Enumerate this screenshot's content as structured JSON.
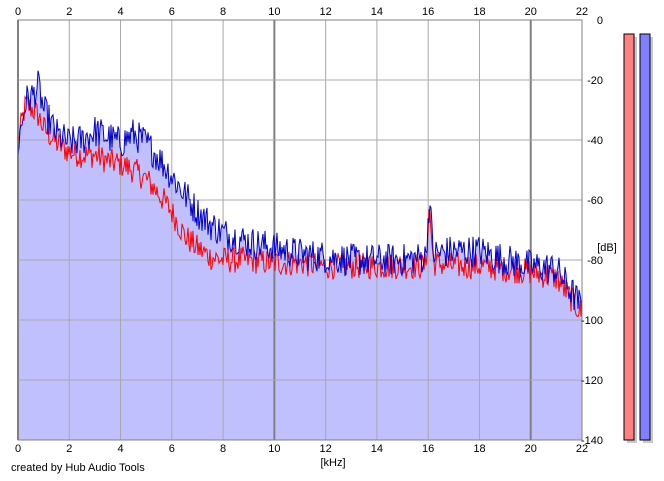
{
  "chart_data": {
    "type": "area",
    "xlabel": "[kHz]",
    "ylabel": "[dB]",
    "xlim": [
      0,
      22
    ],
    "ylim": [
      -140,
      0
    ],
    "x_ticks": [
      "0",
      "2",
      "4",
      "6",
      "8",
      "10",
      "12",
      "14",
      "16",
      "18",
      "20",
      "22"
    ],
    "y_ticks": [
      "0",
      "-20",
      "-40",
      "-60",
      "-80",
      "-100",
      "-120",
      "-140"
    ],
    "grid": true,
    "colors": {
      "fill": "#c0c0ff",
      "red": "#ff0000",
      "blue": "#0000cc"
    },
    "series": [
      {
        "color": "#ff0000",
        "x": [
          0,
          0.3,
          0.6,
          0.8,
          1,
          1.5,
          2,
          2.5,
          3,
          3.5,
          4,
          4.5,
          5,
          5.5,
          6,
          6.5,
          7,
          7.5,
          8,
          9,
          10,
          11,
          12,
          13,
          14,
          15,
          15.9,
          16.05,
          16.2,
          17,
          18,
          19,
          20,
          21,
          22
        ],
        "y": [
          -40,
          -28,
          -30,
          -32,
          -36,
          -41,
          -44,
          -45,
          -45,
          -47,
          -48,
          -50,
          -53,
          -58,
          -64,
          -72,
          -76,
          -79,
          -80,
          -80,
          -81,
          -81,
          -82,
          -82,
          -82,
          -82,
          -82,
          -62,
          -81,
          -82,
          -82,
          -83,
          -84,
          -86,
          -98
        ]
      },
      {
        "color": "#0000cc",
        "x": [
          0,
          0.3,
          0.6,
          0.8,
          1,
          1.5,
          2,
          2.5,
          3,
          3.5,
          4,
          4.5,
          5,
          5.5,
          6,
          6.5,
          7,
          7.5,
          8,
          9,
          10,
          11,
          12,
          13,
          14,
          15,
          15.9,
          16.05,
          16.2,
          17,
          18,
          19,
          20,
          21,
          22
        ],
        "y": [
          -42,
          -27,
          -25,
          -22,
          -30,
          -38,
          -41,
          -40,
          -37,
          -39,
          -41,
          -38,
          -41,
          -46,
          -52,
          -58,
          -64,
          -68,
          -71,
          -74,
          -76,
          -78,
          -79,
          -80,
          -80,
          -80,
          -79,
          -60,
          -78,
          -77,
          -77,
          -80,
          -82,
          -83,
          -96
        ]
      }
    ],
    "meters": [
      {
        "color": "#ff8080",
        "level_db": -5
      },
      {
        "color": "#8080ff",
        "level_db": -5
      }
    ]
  },
  "credit": "created by Hub Audio Tools"
}
